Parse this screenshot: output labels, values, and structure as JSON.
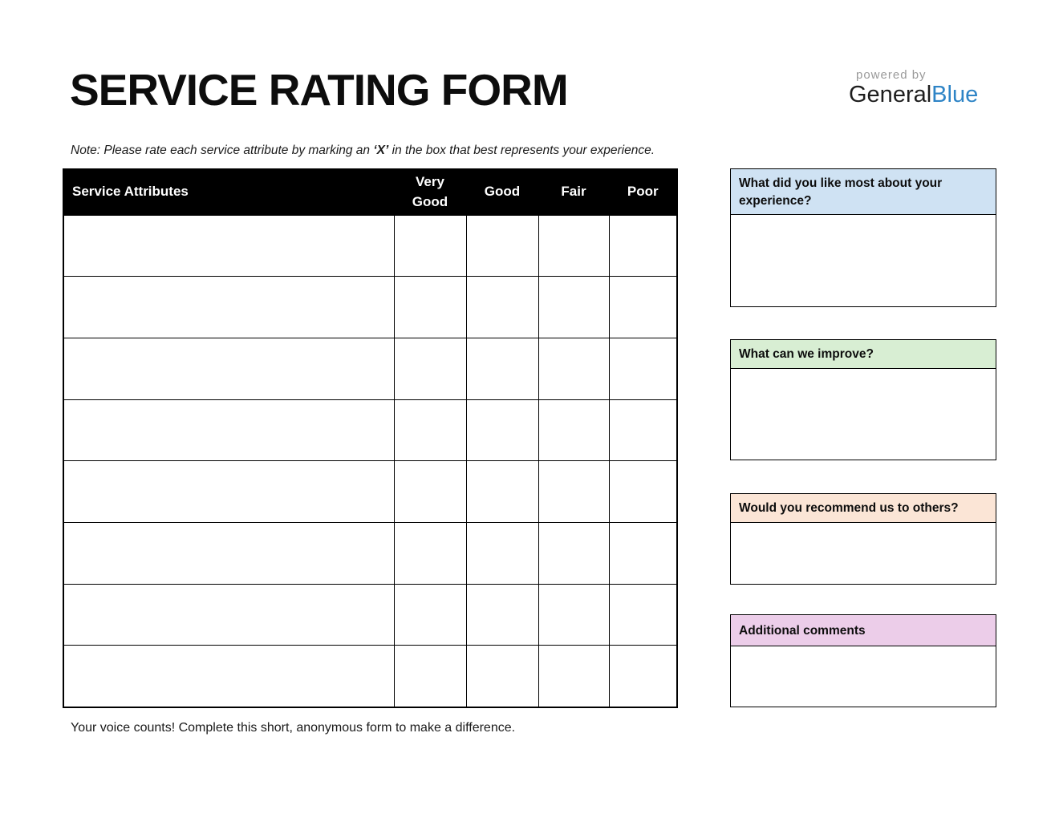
{
  "page": {
    "title": "SERVICE RATING FORM",
    "note_prefix": "Note: Please rate each service attribute by marking an ",
    "note_bold": "‘X’",
    "note_suffix": " in the box that best represents your experience.",
    "footer": "Your voice counts! Complete this short, anonymous form to make a difference."
  },
  "logo": {
    "powered_by": "powered by",
    "brand_general": "General",
    "brand_blue": "Blue",
    "blue_color": "#2e84c6",
    "gray_color": "#9a9a9a"
  },
  "rating_table": {
    "attribute_header": "Service Attributes",
    "rating_headers": [
      "Very Good",
      "Good",
      "Fair",
      "Poor"
    ],
    "header_bg": "#000000",
    "header_text_color": "#ffffff",
    "rows": [
      {
        "attribute": "",
        "ratings": [
          "",
          "",
          "",
          ""
        ]
      },
      {
        "attribute": "",
        "ratings": [
          "",
          "",
          "",
          ""
        ]
      },
      {
        "attribute": "",
        "ratings": [
          "",
          "",
          "",
          ""
        ]
      },
      {
        "attribute": "",
        "ratings": [
          "",
          "",
          "",
          ""
        ]
      },
      {
        "attribute": "",
        "ratings": [
          "",
          "",
          "",
          ""
        ]
      },
      {
        "attribute": "",
        "ratings": [
          "",
          "",
          "",
          ""
        ]
      },
      {
        "attribute": "",
        "ratings": [
          "",
          "",
          "",
          ""
        ]
      },
      {
        "attribute": "",
        "ratings": [
          "",
          "",
          "",
          ""
        ]
      }
    ]
  },
  "comment_boxes": [
    {
      "label": "What did you like most about your experience?",
      "header_bg": "#cfe2f3",
      "value": ""
    },
    {
      "label": "What can we improve?",
      "header_bg": "#d8eed3",
      "value": ""
    },
    {
      "label": "Would you recommend us to others?",
      "header_bg": "#fbe5d6",
      "value": ""
    },
    {
      "label": "Additional comments",
      "header_bg": "#eccde9",
      "value": ""
    }
  ]
}
